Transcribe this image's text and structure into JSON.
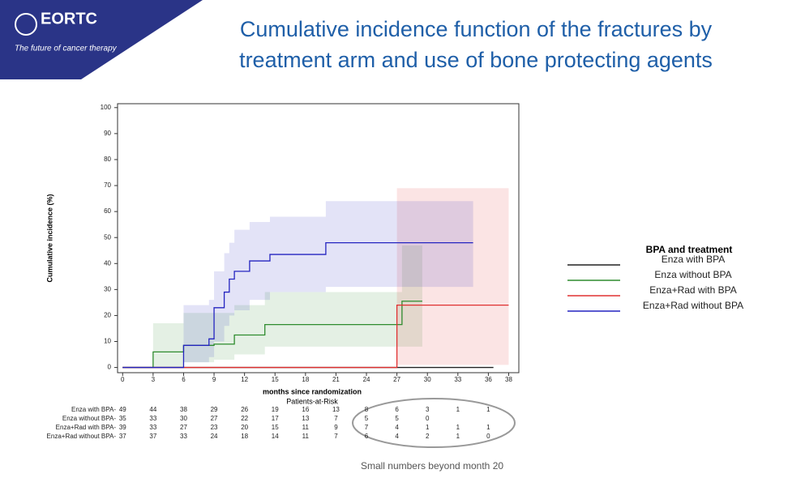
{
  "header": {
    "logo": "EORTC",
    "tagline": "The future of cancer therapy"
  },
  "chart_data": {
    "type": "step",
    "title": [
      "Cumulative incidence function of the fractures by",
      "treatment arm and use of bone protecting agents"
    ],
    "x_label": "months since randomization",
    "y_label": "Cumulative incidence (%)",
    "xlim": [
      -0.5,
      39
    ],
    "ylim": [
      -2,
      101.5
    ],
    "xticks": [
      0,
      3,
      6,
      9,
      12,
      15,
      18,
      21,
      24,
      27,
      30,
      33,
      36,
      38
    ],
    "yticks": [
      0,
      10,
      20,
      30,
      40,
      50,
      60,
      70,
      80,
      90,
      100
    ],
    "legend_title": "BPA and treatment",
    "series": [
      {
        "name": "Enza with BPA",
        "color": "#222222",
        "x": [
          0,
          36.5
        ],
        "values": [
          0,
          0
        ]
      },
      {
        "name": "Enza without BPA",
        "color": "#2e8b2e",
        "x": [
          0,
          3,
          6,
          9,
          11,
          14,
          27.5,
          29.5
        ],
        "values": [
          0,
          6,
          8.5,
          9,
          12.5,
          16.5,
          25.5,
          25.5
        ],
        "lower": [
          0,
          0,
          2,
          3,
          5,
          8,
          8,
          8
        ],
        "upper": [
          0,
          17,
          21,
          21,
          24,
          29,
          47,
          47
        ]
      },
      {
        "name": "Enza+Rad with BPA",
        "color": "#e03030",
        "x": [
          0,
          27,
          38
        ],
        "values": [
          0,
          24,
          24
        ],
        "lower": [
          0,
          1,
          1
        ],
        "upper": [
          0,
          69,
          69
        ]
      },
      {
        "name": "Enza+Rad without BPA",
        "color": "#2424c0",
        "x": [
          0,
          6,
          8.5,
          9,
          10,
          10.5,
          11,
          12.5,
          14.5,
          20,
          34.5
        ],
        "values": [
          0,
          8.5,
          11,
          23,
          29,
          34,
          37,
          41,
          43.5,
          48,
          48
        ],
        "lower": [
          0,
          2,
          4,
          10,
          16,
          20,
          22,
          26,
          29,
          31,
          29
        ],
        "upper": [
          0,
          24,
          26,
          37,
          44,
          48,
          53,
          56,
          58,
          64,
          64
        ]
      }
    ],
    "risk_table": {
      "title": "Patients-at-Risk",
      "rows": [
        {
          "label": "Enza with BPA-",
          "counts": [
            49,
            44,
            38,
            29,
            26,
            19,
            16,
            13,
            8,
            6,
            3,
            1,
            1
          ]
        },
        {
          "label": "Enza without BPA-",
          "counts": [
            35,
            33,
            30,
            27,
            22,
            17,
            13,
            7,
            5,
            5,
            0
          ]
        },
        {
          "label": "Enza+Rad with BPA-",
          "counts": [
            39,
            33,
            27,
            23,
            20,
            15,
            11,
            9,
            7,
            4,
            1,
            1,
            1
          ]
        },
        {
          "label": "Enza+Rad without BPA-",
          "counts": [
            37,
            37,
            33,
            24,
            18,
            14,
            11,
            7,
            6,
            4,
            2,
            1,
            0
          ]
        }
      ]
    },
    "annotation": "Small numbers beyond month 20"
  }
}
